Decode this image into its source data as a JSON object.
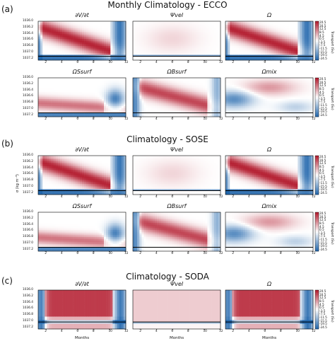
{
  "sections": [
    {
      "letter": "(a)",
      "title": "Monthly Climatology - ECCO"
    },
    {
      "letter": "(b)",
      "title": "Climatology - SOSE"
    },
    {
      "letter": "(c)",
      "title": "Climatology - SODA"
    }
  ],
  "panel_titles": {
    "dvdt": "∂V/∂t",
    "psi_vel": "Ψvel",
    "omega": "Ω",
    "omega_surf_s": "ΩSsurf",
    "omega_surf_b": "ΩBsurf",
    "omega_mix": "Ωmix"
  },
  "axis_text": {
    "xlabel": "Months",
    "ylabel": "σ (kg m⁻³)",
    "colorbar_label": "Transport (Sv)"
  },
  "colors": {
    "positive": "#b2182b",
    "negative": "#2166ac",
    "neutral": "#ffffff",
    "mixed_layer_line": "#000000"
  },
  "chart_data": [
    {
      "type": "heatmap",
      "dataset": "ECCO",
      "panels": [
        "∂V/∂t",
        "Ψvel",
        "Ω",
        "ΩSsurf",
        "ΩBsurf",
        "Ωmix"
      ],
      "x_ticks": [
        "2",
        "4",
        "6",
        "8",
        "10",
        "12"
      ],
      "y_ticks": [
        "1036.0",
        "1036.2",
        "1036.4",
        "1036.6",
        "1036.8",
        "1037.0",
        "1037.2"
      ],
      "ylim": [
        1036.0,
        1037.2
      ],
      "colorbar_ticks": [
        "20.5",
        "16.5",
        "12.5",
        "8.5",
        "4.5",
        "0.5",
        "-3.5",
        "-7.5",
        "-11.5",
        "-15.5",
        "-19.5",
        "-24.5"
      ],
      "colorbar_range": [
        -24.5,
        20.5
      ]
    },
    {
      "type": "heatmap",
      "dataset": "SOSE",
      "panels": [
        "∂V/∂t",
        "Ψvel",
        "Ω",
        "ΩSsurf",
        "ΩBsurf",
        "Ωmix"
      ],
      "x_ticks": [
        "2",
        "4",
        "6",
        "8",
        "10",
        "12"
      ],
      "y_ticks": [
        "1036.0",
        "1036.2",
        "1036.4",
        "1036.6",
        "1036.8",
        "1037.0",
        "1037.2"
      ],
      "ylim": [
        1036.0,
        1037.2
      ],
      "colorbar_ticks": [
        "20.5",
        "16.5",
        "12.5",
        "8.5",
        "4.5",
        "0.5",
        "-3.5",
        "-7.5",
        "-11.5",
        "-15.5",
        "-19.5",
        "-24.5"
      ],
      "colorbar_range": [
        -24.5,
        20.5
      ]
    },
    {
      "type": "heatmap",
      "dataset": "SODA",
      "panels": [
        "∂V/∂t",
        "Ψvel",
        "Ω"
      ],
      "x_ticks": [
        "2",
        "4",
        "6",
        "8",
        "10",
        "12"
      ],
      "y_ticks": [
        "1036.0",
        "1036.2",
        "1036.4",
        "1036.6",
        "1036.8",
        "1037.0",
        "1037.2"
      ],
      "ylim": [
        1036.0,
        1037.2
      ],
      "colorbar_ticks": [
        "20.5",
        "16.5",
        "12.5",
        "8.5",
        "4.5",
        "0.5",
        "-3.5",
        "-7.5",
        "-11.5",
        "-15.5",
        "-19.5",
        "-24.5"
      ],
      "colorbar_range": [
        -24.5,
        20.5
      ]
    }
  ]
}
